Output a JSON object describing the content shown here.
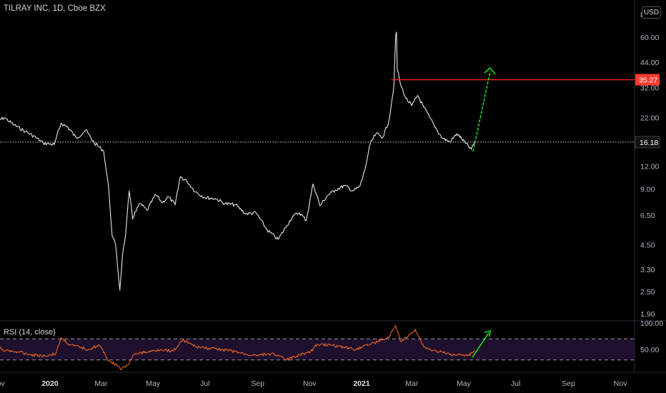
{
  "header": {
    "title": "TILRAY INC, 1D, Cboe BZX",
    "currency": "USD"
  },
  "indicator": {
    "title": "RSI (14, close)"
  },
  "colors": {
    "background": "#000000",
    "price_line": "#e6e6e6",
    "resistance": "#ff2020",
    "resistance_tag": "#ff3b30",
    "arrow": "#19ff19",
    "rsi_line": "#ff6d1f",
    "rsi_band": "#1f0f2e",
    "axis_text": "#b2b5be"
  },
  "chart_data": [
    {
      "type": "line",
      "title": "TILRAY INC, 1D, Cboe BZX",
      "scale": "log",
      "x_ticks": [
        "Nov",
        "2020",
        "Mar",
        "May",
        "Jul",
        "Sep",
        "Nov",
        "2021",
        "Mar",
        "May",
        "Jul",
        "Sep",
        "Nov"
      ],
      "y_ticks": [
        1.9,
        2.5,
        3.3,
        4.5,
        6.5,
        9.0,
        12.0,
        16.18,
        22.0,
        32.0,
        44.0,
        60.0,
        80.0
      ],
      "y_tick_labels": [
        "1.90",
        "2.50",
        "3.30",
        "4.50",
        "6.50",
        "9.00",
        "12.00",
        "16.18",
        "22.00",
        "32.00",
        "44.00",
        "60.00",
        "80.00"
      ],
      "ylim": [
        1.75,
        80
      ],
      "last_price": {
        "value": 16.18,
        "label": "16.18"
      },
      "resistance": {
        "value": 35.27,
        "label": "35.27"
      },
      "series": [
        {
          "x": [
            "2019-10-28",
            "2019-11-08",
            "2019-11-20",
            "2019-12-03",
            "2019-12-15",
            "2019-12-24",
            "2020-01-06",
            "2020-01-14",
            "2020-01-22",
            "2020-02-01",
            "2020-02-12",
            "2020-02-22",
            "2020-03-04",
            "2020-03-10",
            "2020-03-14",
            "2020-03-18",
            "2020-03-23",
            "2020-03-26",
            "2020-03-30",
            "2020-04-03",
            "2020-04-07",
            "2020-04-10",
            "2020-04-16",
            "2020-04-24",
            "2020-05-04",
            "2020-05-12",
            "2020-05-19",
            "2020-05-27",
            "2020-06-02",
            "2020-06-10",
            "2020-06-20",
            "2020-07-01",
            "2020-07-13",
            "2020-07-25",
            "2020-08-06",
            "2020-08-18",
            "2020-08-30",
            "2020-09-12",
            "2020-09-25",
            "2020-10-05",
            "2020-10-12",
            "2020-10-20",
            "2020-10-28",
            "2020-11-05",
            "2020-11-10",
            "2020-11-13",
            "2020-11-22",
            "2020-12-01",
            "2020-12-12",
            "2020-12-22",
            "2020-12-30",
            "2021-01-05",
            "2021-01-11",
            "2021-01-18",
            "2021-01-26",
            "2021-02-02",
            "2021-02-05",
            "2021-02-08",
            "2021-02-10",
            "2021-02-11",
            "2021-02-12",
            "2021-02-16",
            "2021-02-22",
            "2021-03-01",
            "2021-03-08",
            "2021-03-15",
            "2021-03-22",
            "2021-03-30",
            "2021-04-06",
            "2021-04-15",
            "2021-04-23",
            "2021-05-03",
            "2021-05-10",
            "2021-05-14"
          ],
          "values": [
            20.5,
            22.0,
            20.0,
            18.5,
            17.2,
            16.0,
            15.7,
            20.5,
            19.5,
            17.0,
            18.8,
            16.0,
            14.5,
            9.0,
            5.0,
            4.5,
            2.55,
            3.9,
            5.2,
            8.8,
            6.2,
            6.8,
            7.5,
            6.9,
            8.4,
            7.6,
            8.2,
            7.4,
            10.5,
            9.9,
            8.7,
            8.1,
            8.0,
            7.5,
            7.4,
            6.6,
            6.7,
            5.4,
            4.8,
            5.7,
            6.4,
            6.7,
            6.1,
            9.6,
            8.2,
            7.3,
            8.3,
            8.9,
            9.4,
            8.8,
            9.3,
            11.5,
            15.8,
            18.0,
            17.2,
            21.0,
            26.0,
            33.0,
            60.0,
            64.0,
            40.0,
            33.0,
            28.0,
            25.5,
            29.0,
            25.0,
            22.0,
            19.0,
            17.0,
            16.2,
            18.0,
            16.0,
            14.8,
            16.18
          ]
        }
      ]
    },
    {
      "type": "line",
      "title": "RSI (14, close)",
      "y_tick_labels": [
        "100.00",
        "50.00"
      ],
      "ylim": [
        0,
        100
      ],
      "band": [
        30,
        70
      ],
      "series": [
        {
          "name": "RSI (14, close)",
          "x": [
            "2019-10-28",
            "2019-11-10",
            "2019-11-25",
            "2019-12-10",
            "2019-12-26",
            "2020-01-08",
            "2020-01-14",
            "2020-01-25",
            "2020-02-05",
            "2020-02-15",
            "2020-02-28",
            "2020-03-10",
            "2020-03-18",
            "2020-03-25",
            "2020-04-01",
            "2020-04-10",
            "2020-04-25",
            "2020-05-10",
            "2020-05-25",
            "2020-06-05",
            "2020-06-20",
            "2020-07-05",
            "2020-07-20",
            "2020-08-05",
            "2020-08-20",
            "2020-09-05",
            "2020-09-20",
            "2020-10-05",
            "2020-10-20",
            "2020-11-02",
            "2020-11-10",
            "2020-11-25",
            "2020-12-10",
            "2020-12-25",
            "2021-01-05",
            "2021-01-15",
            "2021-01-25",
            "2021-02-02",
            "2021-02-08",
            "2021-02-10",
            "2021-02-16",
            "2021-02-25",
            "2021-03-05",
            "2021-03-15",
            "2021-03-25",
            "2021-04-05",
            "2021-04-15",
            "2021-04-25",
            "2021-05-05",
            "2021-05-14"
          ],
          "values": [
            55,
            48,
            45,
            40,
            38,
            42,
            72,
            58,
            54,
            50,
            58,
            28,
            22,
            12,
            20,
            42,
            45,
            50,
            47,
            68,
            55,
            52,
            50,
            46,
            40,
            40,
            42,
            30,
            40,
            45,
            60,
            58,
            55,
            50,
            58,
            62,
            68,
            72,
            90,
            95,
            65,
            75,
            88,
            55,
            48,
            45,
            40,
            42,
            38,
            46
          ]
        }
      ]
    }
  ]
}
